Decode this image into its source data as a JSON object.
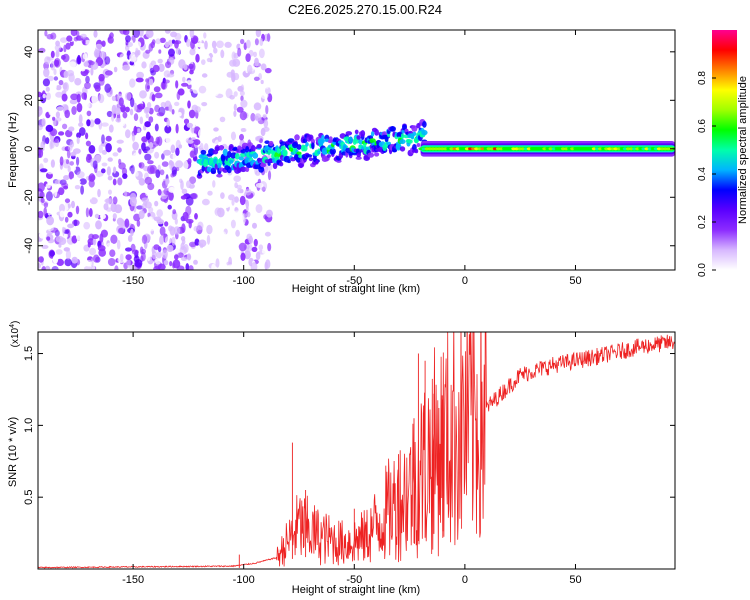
{
  "title": "C2E6.2025.270.15.00.R24",
  "chart_data": [
    {
      "type": "heatmap",
      "xlabel": "Height of straight line (km)",
      "ylabel": "Frequency (Hz)",
      "xlim": [
        -193,
        95
      ],
      "ylim": [
        -50,
        49
      ],
      "x_ticks": [
        -150,
        -100,
        -50,
        0,
        50
      ],
      "x_tick_labels": [
        "-150",
        "-100",
        "-50",
        "0",
        "50"
      ],
      "y_ticks": [
        -40,
        -20,
        0,
        20,
        40
      ],
      "y_tick_labels": [
        "-40",
        "-20",
        "0",
        "20",
        "40"
      ],
      "colorbar": {
        "label": "Normalized spectral amplitude",
        "range": [
          0,
          1
        ],
        "ticks": [
          0.0,
          0.2,
          0.4,
          0.6,
          0.8
        ],
        "tick_labels": [
          "0.0",
          "0.2",
          "0.4",
          "0.6",
          "0.8"
        ],
        "colors": [
          "#ffffff",
          "#d7b7ff",
          "#8c2cff",
          "#5a00ff",
          "#0000ff",
          "#00b4ff",
          "#00ffaa",
          "#00ff00",
          "#a0ff00",
          "#ffff00",
          "#ff8000",
          "#ff0000",
          "#ff0090"
        ]
      },
      "description_regions": [
        {
          "x_range": [
            -193,
            -120
          ],
          "freq_range": [
            -50,
            49
          ],
          "amplitude": 0.15,
          "pattern": "noise"
        },
        {
          "x_range": [
            -105,
            -90
          ],
          "freq_range": [
            -50,
            49
          ],
          "amplitude": 0.1,
          "pattern": "noise"
        },
        {
          "x_range": [
            -120,
            -20
          ],
          "freq_center_start": -6,
          "freq_center_end": 5,
          "amplitude": 0.4,
          "pattern": "rising band"
        },
        {
          "x_range": [
            -20,
            95
          ],
          "freq_center": 0,
          "amplitude": 0.8,
          "pattern": "narrow line"
        }
      ]
    },
    {
      "type": "line",
      "series": [
        {
          "name": "SNR",
          "color": "#ee2222"
        }
      ],
      "xlabel": "Height of straight line (km)",
      "ylabel": "SNR (10 * v/v)",
      "y_multiplier_label": "(x10",
      "y_multiplier_exp": "4",
      "y_multiplier_close": ")",
      "xlim": [
        -193,
        95
      ],
      "ylim": [
        0,
        1.65
      ],
      "x_ticks": [
        -150,
        -100,
        -50,
        0,
        50
      ],
      "x_tick_labels": [
        "-150",
        "-100",
        "-50",
        "0",
        "50"
      ],
      "y_ticks": [
        0.5,
        1.0,
        1.5
      ],
      "y_tick_labels": [
        "0.5",
        "1.0",
        "1.5"
      ],
      "knots": [
        {
          "x": -193,
          "y": 0.01
        },
        {
          "x": -105,
          "y": 0.02
        },
        {
          "x": -95,
          "y": 0.04
        },
        {
          "x": -85,
          "y": 0.08
        },
        {
          "x": -75,
          "y": 0.3
        },
        {
          "x": -65,
          "y": 0.22
        },
        {
          "x": -55,
          "y": 0.18
        },
        {
          "x": -45,
          "y": 0.22
        },
        {
          "x": -35,
          "y": 0.4
        },
        {
          "x": -25,
          "y": 0.55
        },
        {
          "x": -15,
          "y": 0.8
        },
        {
          "x": -5,
          "y": 0.95
        },
        {
          "x": 5,
          "y": 1.05
        },
        {
          "x": 15,
          "y": 1.2
        },
        {
          "x": 25,
          "y": 1.35
        },
        {
          "x": 40,
          "y": 1.42
        },
        {
          "x": 60,
          "y": 1.48
        },
        {
          "x": 80,
          "y": 1.55
        },
        {
          "x": 95,
          "y": 1.58
        }
      ],
      "spikes": [
        {
          "x": -102,
          "y": 0.1
        },
        {
          "x": -78,
          "y": 0.88
        },
        {
          "x": -72,
          "y": 0.55
        },
        {
          "x": -50,
          "y": 0.42
        },
        {
          "x": -30,
          "y": 0.8
        },
        {
          "x": -23,
          "y": 1.05
        },
        {
          "x": -21,
          "y": 1.5
        },
        {
          "x": -18,
          "y": 1.45
        },
        {
          "x": -14,
          "y": 1.22
        },
        {
          "x": -10,
          "y": 1.18
        }
      ]
    }
  ]
}
